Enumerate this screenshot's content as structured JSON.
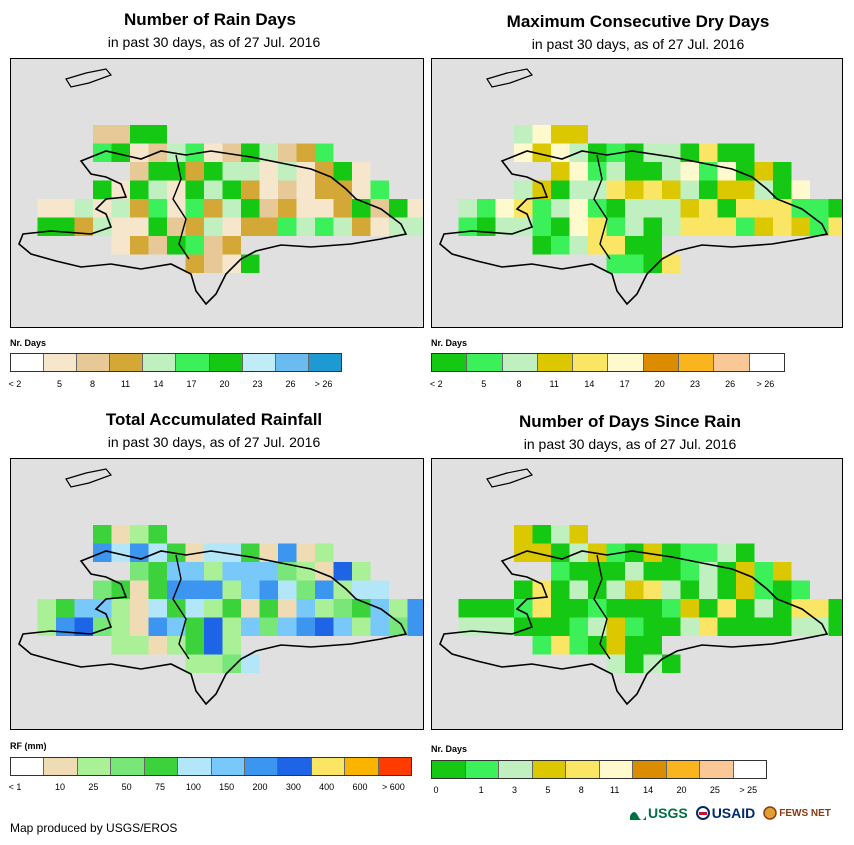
{
  "panels": [
    {
      "title": "Number of Rain Days",
      "subtitle": "in past 30 days, as of 27 Jul. 2016",
      "legend_title": "Nr. Days",
      "legend_colors": [
        "#ffffff",
        "#f5e6cc",
        "#e6c996",
        "#d4a836",
        "#c0f0c0",
        "#3cf05a",
        "#14c814",
        "#c0ecf8",
        "#6abcf0",
        "#1e9ad2"
      ],
      "legend_labels": [
        "< 2",
        "5",
        "8",
        "11",
        "14",
        "17",
        "20",
        "23",
        "26",
        "> 26"
      ]
    },
    {
      "title": "Maximum Consecutive Dry Days",
      "subtitle": "in past 30 days, as of 27 Jul. 2016",
      "legend_title": "Nr. Days",
      "legend_colors": [
        "#14c814",
        "#3cf05a",
        "#c0f0c0",
        "#dcc800",
        "#fae664",
        "#fffacd",
        "#dc8c00",
        "#fab41e",
        "#fac896",
        "#ffffff"
      ],
      "legend_labels": [
        "< 2",
        "5",
        "8",
        "11",
        "14",
        "17",
        "20",
        "23",
        "26",
        "> 26"
      ]
    },
    {
      "title": "Total Accumulated Rainfall",
      "subtitle": "in past 30 days, as of 27 Jul. 2016",
      "legend_title": "RF (mm)",
      "legend_colors": [
        "#ffffff",
        "#f0dcb4",
        "#aaf096",
        "#78e678",
        "#3cd23c",
        "#b4e6fa",
        "#78c8fa",
        "#3c96f0",
        "#1e64e6",
        "#fae664",
        "#fab400",
        "#ff3c00"
      ],
      "legend_labels": [
        "< 1",
        "10",
        "25",
        "50",
        "75",
        "100",
        "150",
        "200",
        "300",
        "400",
        "600",
        "> 600"
      ]
    },
    {
      "title": "Number of Days Since Rain",
      "subtitle": "in past 30 days, as of 27 Jul. 2016",
      "legend_title": "Nr. Days",
      "legend_colors": [
        "#14c814",
        "#3cf05a",
        "#c0f0c0",
        "#dcc800",
        "#fae664",
        "#fffacd",
        "#dc8c00",
        "#fab41e",
        "#fac896",
        "#ffffff"
      ],
      "legend_labels": [
        "0",
        "1",
        "3",
        "5",
        "8",
        "11",
        "14",
        "20",
        "25",
        "> 25"
      ]
    }
  ],
  "credit": "Map produced by USGS/EROS",
  "logos": [
    "USGS",
    "USAID",
    "FEWS NET"
  ]
}
